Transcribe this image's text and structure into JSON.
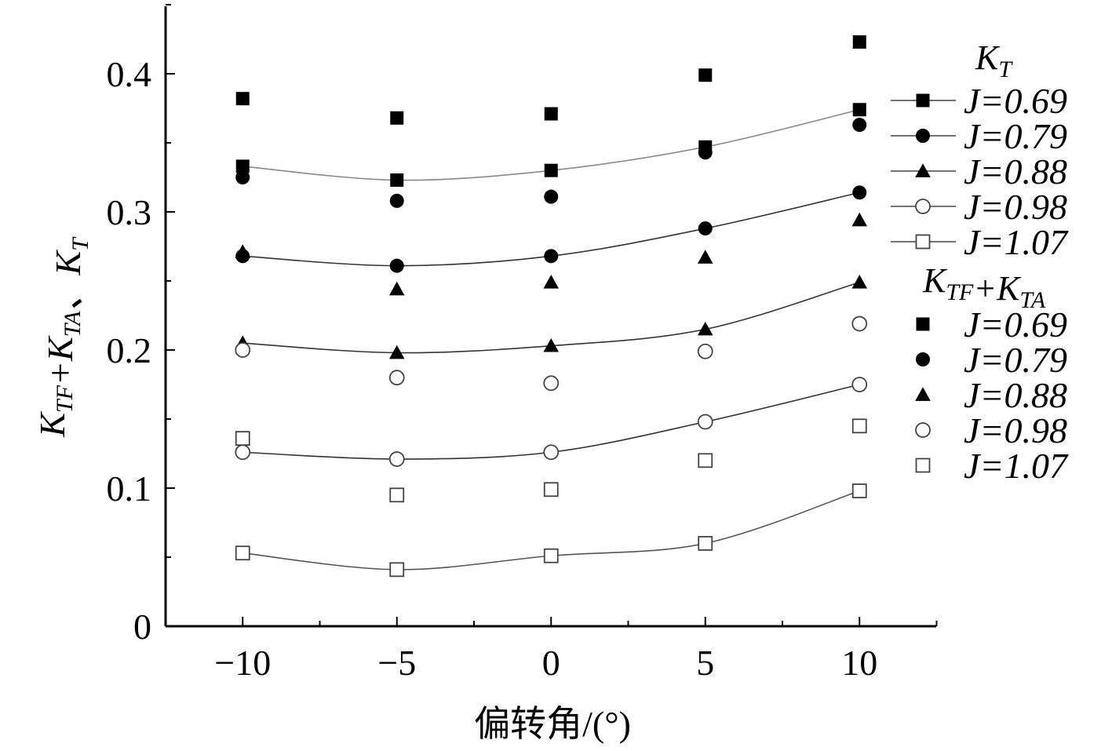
{
  "chart_data": {
    "type": "scatter",
    "xlabel": "偏转角/(°)",
    "ylabel": {
      "parts": [
        {
          "text": "K",
          "sub": "TF"
        },
        {
          "text": "+K",
          "sub": "TA"
        },
        {
          "text": "、K",
          "sub": "T"
        }
      ]
    },
    "x": [
      -10,
      -5,
      0,
      5,
      10
    ],
    "xlim": [
      -12.5,
      12.5
    ],
    "ylim": [
      0,
      0.45
    ],
    "xticks": [
      -10,
      -5,
      0,
      5,
      10
    ],
    "xtick_labels": [
      "−10",
      "−5",
      "0",
      "5",
      "10"
    ],
    "yticks": [
      0,
      0.1,
      0.2,
      0.3,
      0.4
    ],
    "ytick_labels": [
      "0",
      "0.1",
      "0.2",
      "0.3",
      "0.4"
    ],
    "grid": false,
    "legend_position": "right",
    "groups": [
      {
        "title": {
          "text": "K",
          "sub": "T"
        },
        "style": "line+marker",
        "series": [
          {
            "name": "J=0.69",
            "marker": "square-filled",
            "values": [
              0.333,
              0.323,
              0.33,
              0.347,
              0.374
            ]
          },
          {
            "name": "J=0.79",
            "marker": "circle-filled",
            "values": [
              0.268,
              0.261,
              0.268,
              0.288,
              0.314
            ]
          },
          {
            "name": "J=0.88",
            "marker": "triangle-filled",
            "values": [
              0.205,
              0.198,
              0.203,
              0.215,
              0.249
            ]
          },
          {
            "name": "J=0.98",
            "marker": "circle-open",
            "values": [
              0.126,
              0.121,
              0.126,
              0.148,
              0.175
            ]
          },
          {
            "name": "J=1.07",
            "marker": "square-open",
            "values": [
              0.053,
              0.041,
              0.051,
              0.06,
              0.098
            ]
          }
        ]
      },
      {
        "title": {
          "text": "K",
          "sub": "TF",
          "text2": "+K",
          "sub2": "TA"
        },
        "style": "marker",
        "series": [
          {
            "name": "J=0.69",
            "marker": "square-filled",
            "values": [
              0.382,
              0.368,
              0.371,
              0.399,
              0.423
            ]
          },
          {
            "name": "J=0.79",
            "marker": "circle-filled",
            "values": [
              0.325,
              0.308,
              0.311,
              0.343,
              0.363
            ]
          },
          {
            "name": "J=0.88",
            "marker": "triangle-filled",
            "values": [
              0.271,
              0.244,
              0.249,
              0.267,
              0.294
            ]
          },
          {
            "name": "J=0.98",
            "marker": "circle-open",
            "values": [
              0.2,
              0.18,
              0.176,
              0.199,
              0.219
            ]
          },
          {
            "name": "J=1.07",
            "marker": "square-open",
            "values": [
              0.136,
              0.095,
              0.099,
              0.12,
              0.145
            ]
          }
        ]
      }
    ]
  }
}
